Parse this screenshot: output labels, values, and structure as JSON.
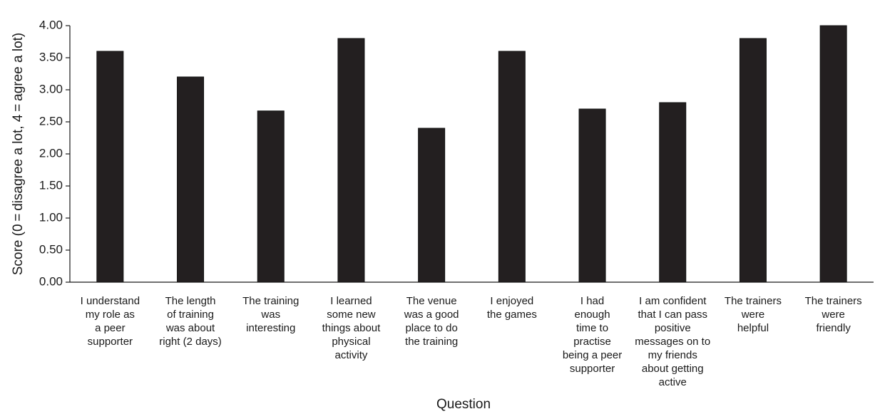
{
  "chart_data": {
    "type": "bar",
    "xlabel": "Question",
    "ylabel": "Score (0 = disagree a lot, 4 = agree a lot)",
    "ylim": [
      0,
      4
    ],
    "yticks": [
      "0.00",
      "0.50",
      "1.00",
      "1.50",
      "2.00",
      "2.50",
      "3.00",
      "3.50",
      "4.00"
    ],
    "grid": false,
    "categories": [
      [
        "I understand",
        "my role as",
        "a peer",
        "supporter"
      ],
      [
        "The length",
        "of training",
        "was about",
        "right (2 days)"
      ],
      [
        "The training",
        "was",
        "interesting"
      ],
      [
        "I learned",
        "some new",
        "things about",
        "physical",
        "activity"
      ],
      [
        "The venue",
        "was a good",
        "place to do",
        "the training"
      ],
      [
        "I enjoyed",
        "the games"
      ],
      [
        "I had",
        "enough",
        "time to",
        "practise",
        "being a peer",
        "supporter"
      ],
      [
        "I am confident",
        "that I can pass",
        "positive",
        "messages on to",
        "my friends",
        "about getting",
        "active"
      ],
      [
        "The trainers",
        "were",
        "helpful"
      ],
      [
        "The trainers",
        "were",
        "friendly"
      ]
    ],
    "values": [
      3.6,
      3.2,
      2.67,
      3.8,
      2.4,
      3.6,
      2.7,
      2.8,
      3.8,
      4.0
    ],
    "bar_color": "#231f20"
  }
}
